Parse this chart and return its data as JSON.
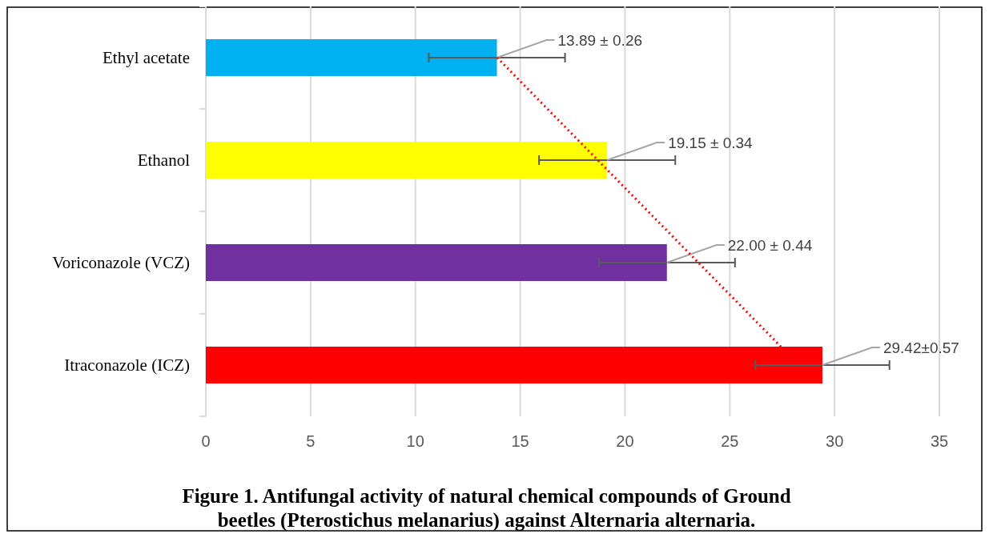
{
  "chart_data": {
    "type": "bar",
    "orientation": "horizontal",
    "title": "Figure 1. Antifungal activity of natural chemical compounds of Ground beetles (Pterostichus melanarius) against Alternaria alternaria.",
    "categories": [
      "Ethyl acetate",
      "Ethanol",
      "Voriconazole (VCZ)",
      "Itraconazole (ICZ)"
    ],
    "series": [
      {
        "colors": [
          "#00b0f0",
          "#ffff00",
          "#7030a0",
          "#ff0000"
        ],
        "values": [
          13.89,
          19.15,
          22.0,
          29.42
        ],
        "errors": [
          3.25,
          3.25,
          3.25,
          3.2
        ],
        "value_labels": [
          "13.89 ± 0.26",
          "19.15 ± 0.34",
          "22.00 ± 0.44",
          "29.42±0.57"
        ]
      },
      {
        "type": "line",
        "color": "#ff0000",
        "line_style": "dotted",
        "marker": "none",
        "values": [
          13.9,
          18.7,
          23.5,
          28.3
        ]
      }
    ],
    "xlim": [
      0,
      35
    ],
    "xticks": [
      0,
      5,
      10,
      15,
      20,
      25,
      30,
      35
    ],
    "grid": "x"
  }
}
